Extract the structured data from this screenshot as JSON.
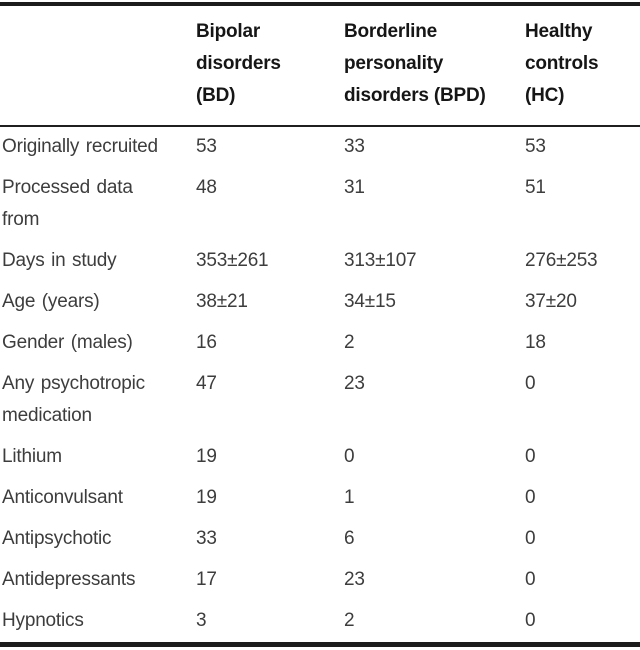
{
  "table": {
    "header": {
      "columns": [
        "Bipolar\ndisorders\n(BD)",
        "Borderline\npersonality\ndisorders (BPD)",
        "Healthy\ncontrols\n(HC)"
      ]
    },
    "rows": [
      {
        "label": "Originally recruited",
        "values": [
          "53",
          "33",
          "53"
        ]
      },
      {
        "label": "Processed data\nfrom",
        "values": [
          "48",
          "31",
          "51"
        ]
      },
      {
        "label": "Days in study",
        "values": [
          "353±261",
          "313±107",
          "276±253"
        ]
      },
      {
        "label": "Age (years)",
        "values": [
          "38±21",
          "34±15",
          "37±20"
        ]
      },
      {
        "label": "Gender (males)",
        "values": [
          "16",
          "2",
          "18"
        ]
      },
      {
        "label": "Any psychotropic\nmedication",
        "values": [
          "47",
          "23",
          "0"
        ]
      },
      {
        "label": "Lithium",
        "values": [
          "19",
          "0",
          "0"
        ]
      },
      {
        "label": "Anticonvulsant",
        "values": [
          "19",
          "1",
          "0"
        ]
      },
      {
        "label": "Antipsychotic",
        "values": [
          "33",
          "6",
          "0"
        ]
      },
      {
        "label": "Antidepressants",
        "values": [
          "17",
          "23",
          "0"
        ]
      },
      {
        "label": "Hypnotics",
        "values": [
          "3",
          "2",
          "0"
        ]
      }
    ],
    "colors": {
      "rule": "#1c1c1c",
      "header_text": "#161616",
      "body_text": "#3d3d3d",
      "background": "#ffffff"
    }
  }
}
